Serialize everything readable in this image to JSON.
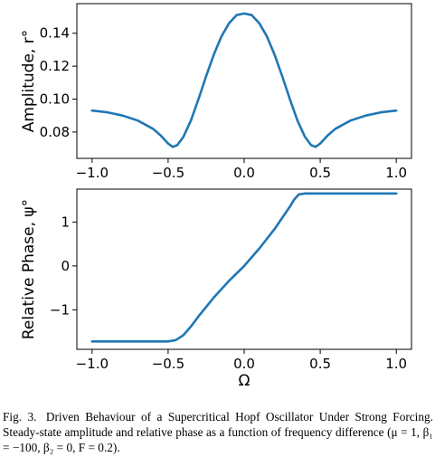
{
  "chart_data": [
    {
      "type": "line",
      "title": "",
      "xlabel": "",
      "ylabel": "Amplitude, r°",
      "xlim": [
        -1.1,
        1.1
      ],
      "ylim": [
        0.064,
        0.158
      ],
      "xticks": [
        "−1.0",
        "−0.5",
        "0.0",
        "0.5",
        "1.0"
      ],
      "xtick_values": [
        -1.0,
        -0.5,
        0.0,
        0.5,
        1.0
      ],
      "yticks": [
        "0.08",
        "0.10",
        "0.12",
        "0.14"
      ],
      "ytick_values": [
        0.08,
        0.1,
        0.12,
        0.14
      ],
      "grid": false,
      "series": [
        {
          "color": "#1f77b4",
          "x": [
            -1.0,
            -0.9,
            -0.8,
            -0.7,
            -0.6,
            -0.55,
            -0.5,
            -0.47,
            -0.44,
            -0.4,
            -0.35,
            -0.3,
            -0.25,
            -0.2,
            -0.15,
            -0.1,
            -0.05,
            0.0,
            0.05,
            0.1,
            0.15,
            0.2,
            0.25,
            0.3,
            0.35,
            0.4,
            0.44,
            0.47,
            0.5,
            0.55,
            0.6,
            0.7,
            0.8,
            0.9,
            1.0
          ],
          "y": [
            0.093,
            0.092,
            0.09,
            0.087,
            0.082,
            0.078,
            0.073,
            0.071,
            0.072,
            0.077,
            0.087,
            0.1,
            0.114,
            0.127,
            0.138,
            0.146,
            0.151,
            0.152,
            0.151,
            0.146,
            0.138,
            0.127,
            0.114,
            0.1,
            0.087,
            0.077,
            0.072,
            0.071,
            0.073,
            0.078,
            0.082,
            0.087,
            0.09,
            0.092,
            0.093
          ]
        }
      ]
    },
    {
      "type": "line",
      "title": "",
      "xlabel": "Ω",
      "ylabel": "Relative Phase, ψ°",
      "xlim": [
        -1.1,
        1.1
      ],
      "ylim": [
        -1.9,
        1.75
      ],
      "xticks": [
        "−1.0",
        "−0.5",
        "0.0",
        "0.5",
        "1.0"
      ],
      "xtick_values": [
        -1.0,
        -0.5,
        0.0,
        0.5,
        1.0
      ],
      "yticks": [
        "−1",
        "0",
        "1"
      ],
      "ytick_values": [
        -1,
        0,
        1
      ],
      "grid": false,
      "series": [
        {
          "color": "#1f77b4",
          "x": [
            -1.0,
            -0.8,
            -0.6,
            -0.5,
            -0.45,
            -0.4,
            -0.35,
            -0.3,
            -0.2,
            -0.1,
            0.0,
            0.1,
            0.2,
            0.3,
            0.33,
            0.36,
            0.4,
            0.6,
            0.8,
            1.0
          ],
          "y": [
            -1.72,
            -1.72,
            -1.72,
            -1.72,
            -1.69,
            -1.58,
            -1.38,
            -1.15,
            -0.72,
            -0.34,
            0.0,
            0.4,
            0.84,
            1.35,
            1.52,
            1.63,
            1.65,
            1.65,
            1.65,
            1.65
          ]
        }
      ]
    }
  ],
  "caption": {
    "label": "Fig. 3.",
    "title": "Driven Behaviour of a Supercritical Hopf Oscillator Under Strong Forcing.",
    "body": "Steady-state amplitude and relative phase as a function of frequency difference (μ = 1, β₁ = −100, β₂ = 0, F = 0.2)."
  }
}
